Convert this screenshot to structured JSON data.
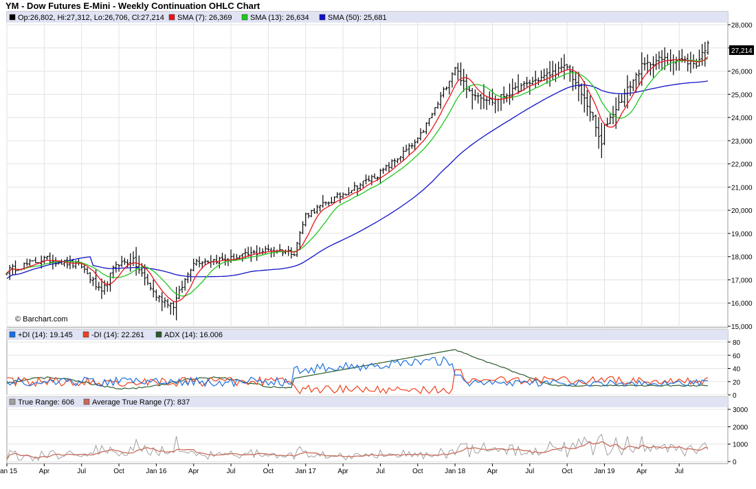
{
  "title": "YM - Dow Futures E-Mini - Weekly Continuation OHLC Chart",
  "copyright": "© Barchart.com",
  "colors": {
    "background_legend": "#dfe3f3",
    "sma7": "#e8141b",
    "sma13": "#1cc81c",
    "sma50": "#1010c8",
    "pdi": "#1a6fe0",
    "mdi": "#f0401c",
    "adx": "#2a5a2a",
    "true_range": "#a0a0a0",
    "atr": "#c86a5a",
    "price_bar": "#000000",
    "last_price_box": "#000000"
  },
  "price_panel": {
    "legend": [
      {
        "text": "Op:26,802, Hi:27,312, Lo:26,706, Cl:27,214",
        "color": "#000000"
      },
      {
        "text": "SMA (7): 26,369",
        "color": "#e8141b"
      },
      {
        "text": "SMA (13): 26,634",
        "color": "#1cc81c"
      },
      {
        "text": "SMA (50): 25,681",
        "color": "#1010c8"
      }
    ],
    "last_price_label": "27,214",
    "ylim": [
      15000,
      28000
    ],
    "y_ticks": [
      "15,000",
      "16,000",
      "17,000",
      "18,000",
      "19,000",
      "20,000",
      "21,000",
      "22,000",
      "23,000",
      "24,000",
      "25,000",
      "26,000",
      "27,000",
      "28,000"
    ],
    "y_tick_values": [
      15000,
      16000,
      17000,
      18000,
      19000,
      20000,
      21000,
      22000,
      23000,
      24000,
      25000,
      26000,
      27000,
      28000
    ]
  },
  "dmi_panel": {
    "legend": [
      {
        "text": "+DI (14): 19.145",
        "color": "#1a6fe0"
      },
      {
        "text": "-DI (14): 22.261",
        "color": "#f0401c"
      },
      {
        "text": "ADX (14): 16.006",
        "color": "#2a5a2a"
      }
    ],
    "ylim": [
      0,
      80
    ],
    "y_ticks": [
      "0",
      "20",
      "40",
      "60",
      "80"
    ],
    "y_tick_values": [
      0,
      20,
      40,
      60,
      80
    ]
  },
  "atr_panel": {
    "legend": [
      {
        "text": "True Range: 606",
        "color": "#a0a0a0"
      },
      {
        "text": "Average True Range (7): 837",
        "color": "#c86a5a"
      }
    ],
    "ylim": [
      0,
      3000
    ],
    "y_ticks": [
      "0",
      "1000",
      "2000",
      "3000"
    ],
    "y_tick_values": [
      0,
      1000,
      2000,
      3000
    ]
  },
  "x_axis": {
    "labels": [
      "Jan 15",
      "Apr",
      "Jul",
      "Oct",
      "Jan 16",
      "Apr",
      "Jul",
      "Oct",
      "Jan 17",
      "Apr",
      "Jul",
      "Oct",
      "Jan 18",
      "Apr",
      "Jul",
      "Oct",
      "Jan 19",
      "Apr",
      "Jul"
    ],
    "label_week_index": [
      0,
      13,
      26,
      39,
      52,
      65,
      78,
      91,
      104,
      117,
      130,
      143,
      156,
      169,
      182,
      195,
      208,
      221,
      234
    ]
  },
  "chart_data": {
    "type": "line",
    "title": "YM - Dow Futures E-Mini - Weekly Continuation OHLC Chart",
    "frequency": "weekly",
    "weeks": 245,
    "x": [
      "Jan 15",
      "Apr",
      "Jul",
      "Oct",
      "Jan 16",
      "Apr",
      "Jul",
      "Oct",
      "Jan 17",
      "Apr",
      "Jul",
      "Oct",
      "Jan 18",
      "Apr",
      "Jul",
      "Oct",
      "Jan 19",
      "Apr",
      "Jul"
    ],
    "close_anchor_week": [
      0,
      13,
      26,
      33,
      38,
      44,
      52,
      58,
      65,
      78,
      91,
      100,
      104,
      117,
      130,
      143,
      150,
      156,
      160,
      169,
      182,
      195,
      203,
      207,
      208,
      221,
      227,
      234,
      240,
      244
    ],
    "close_anchor_value": [
      17400,
      17900,
      17600,
      16400,
      17700,
      17800,
      16300,
      15900,
      17800,
      17900,
      18300,
      18200,
      19800,
      20700,
      21600,
      23000,
      24600,
      26200,
      25200,
      24700,
      25500,
      26200,
      24300,
      22800,
      23600,
      26200,
      26500,
      26500,
      26300,
      27214
    ],
    "last_bar": {
      "open": 26802,
      "high": 27312,
      "low": 26706,
      "close": 27214
    },
    "series": [
      {
        "name": "SMA (7)",
        "last": 26369
      },
      {
        "name": "SMA (13)",
        "last": 26634
      },
      {
        "name": "SMA (50)",
        "last": 25681
      },
      {
        "name": "+DI (14)",
        "last": 19.145
      },
      {
        "name": "-DI (14)",
        "last": 22.261
      },
      {
        "name": "ADX (14)",
        "last": 16.006
      },
      {
        "name": "True Range",
        "last": 606
      },
      {
        "name": "Average True Range (7)",
        "last": 837
      }
    ],
    "ylim": [
      15000,
      28000
    ]
  }
}
